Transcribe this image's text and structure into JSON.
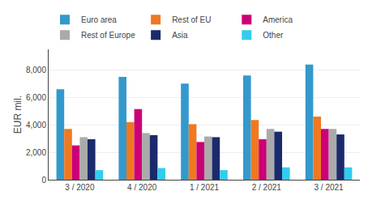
{
  "chart_data": {
    "type": "bar",
    "categories": [
      "3 / 2020",
      "4 / 2020",
      "1 / 2021",
      "2 / 2021",
      "3 / 2021"
    ],
    "series": [
      {
        "name": "Euro area",
        "color": "#3399CC",
        "values": [
          6600,
          7500,
          7000,
          7600,
          8400
        ]
      },
      {
        "name": "Rest of EU",
        "color": "#F07820",
        "values": [
          3700,
          4200,
          4050,
          4350,
          4600
        ]
      },
      {
        "name": "America",
        "color": "#CC0077",
        "values": [
          2500,
          5150,
          2750,
          2950,
          3700
        ]
      },
      {
        "name": "Rest of Europe",
        "color": "#AAAAAA",
        "values": [
          3100,
          3400,
          3150,
          3700,
          3700
        ]
      },
      {
        "name": "Asia",
        "color": "#1A2A6C",
        "values": [
          2950,
          3250,
          3100,
          3500,
          3300
        ]
      },
      {
        "name": "Other",
        "color": "#33CCEE",
        "values": [
          700,
          850,
          700,
          900,
          900
        ]
      }
    ],
    "ylabel": "EUR mil.",
    "ylim": [
      0,
      9500
    ],
    "yticks": [
      0,
      {
        "value": 2000,
        "label": "2,000"
      },
      {
        "value": 4000,
        "label": "4,000"
      },
      {
        "value": 6000,
        "label": "6,000"
      },
      {
        "value": 8000,
        "label": "8,000"
      }
    ],
    "grid": true,
    "legend": "top"
  }
}
